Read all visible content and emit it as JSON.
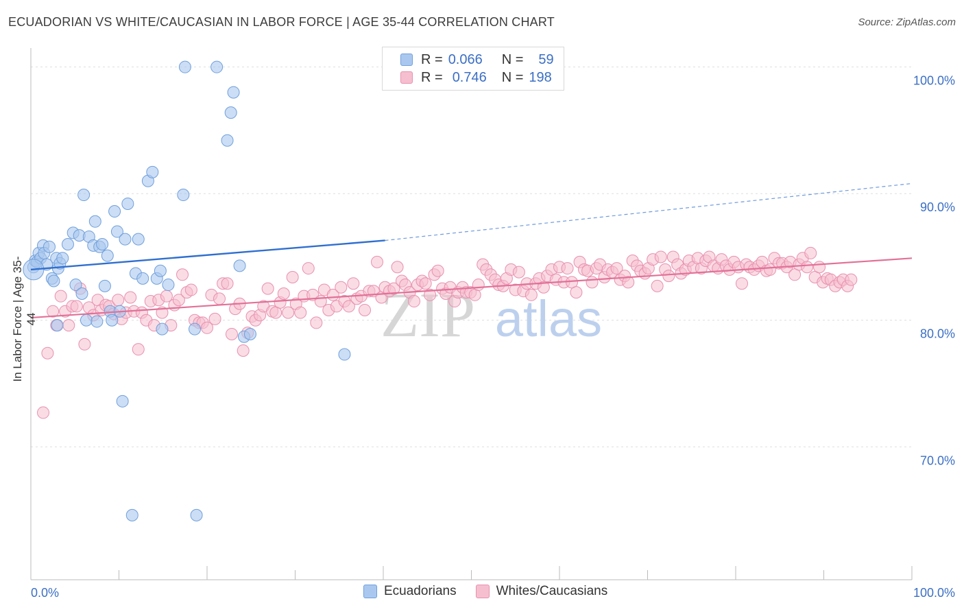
{
  "header": {
    "title": "ECUADORIAN VS WHITE/CAUCASIAN IN LABOR FORCE | AGE 35-44 CORRELATION CHART",
    "source": "Source: ZipAtlas.com"
  },
  "watermark": {
    "zip": "ZIP",
    "atlas": "atlas"
  },
  "legend_top": {
    "rows": [
      {
        "r_label": "R =",
        "r_value": "0.066",
        "n_label": "N =",
        "n_value": "59"
      },
      {
        "r_label": "R =",
        "r_value": "0.746",
        "n_label": "N =",
        "n_value": "198"
      }
    ]
  },
  "legend_bottom": {
    "items": [
      "Ecuadorians",
      "Whites/Caucasians"
    ]
  },
  "colors": {
    "blue_fill": "#aac8ef",
    "blue_stroke": "#6f9fdc",
    "blue_line": "#2f6fcf",
    "pink_fill": "#f6bfd0",
    "pink_stroke": "#e890ae",
    "pink_line": "#e27097",
    "tick_label": "#3b6fc4",
    "grid": "#dddddd"
  },
  "chart_data": {
    "type": "scatter",
    "title": "ECUADORIAN VS WHITE/CAUCASIAN IN LABOR FORCE | AGE 35-44 CORRELATION CHART",
    "xlabel": "",
    "ylabel": "In Labor Force | Age 35-44",
    "xlim": [
      0,
      100
    ],
    "ylim": [
      59.5,
      101.5
    ],
    "x_tick_labels": [
      {
        "value": 0,
        "label": "0.0%"
      },
      {
        "value": 100,
        "label": "100.0%"
      }
    ],
    "y_tick_labels": [
      {
        "value": 100,
        "label": "100.0%"
      },
      {
        "value": 90,
        "label": "90.0%"
      },
      {
        "value": 80,
        "label": "80.0%"
      },
      {
        "value": 70,
        "label": "70.0%"
      }
    ],
    "grid": true,
    "legend_placement": "bottom",
    "series": [
      {
        "name": "Ecuadorians",
        "r": 0.066,
        "n": 59,
        "trend": {
          "x": [
            0,
            40.2
          ],
          "y": [
            84.0,
            86.3
          ]
        },
        "trend_extension": {
          "x": [
            40.2,
            100
          ],
          "y": [
            86.3,
            90.8
          ]
        },
        "points": [
          [
            0.3,
            84.2
          ],
          [
            0.5,
            84.7
          ],
          [
            0.7,
            84.6
          ],
          [
            0.9,
            85.3
          ],
          [
            1.1,
            84.9
          ],
          [
            1.4,
            85.9
          ],
          [
            1.5,
            85.3
          ],
          [
            1.8,
            84.4
          ],
          [
            2.1,
            85.8
          ],
          [
            2.4,
            83.3
          ],
          [
            2.6,
            83.1
          ],
          [
            2.9,
            84.9
          ],
          [
            3.1,
            84.1
          ],
          [
            3.3,
            84.5
          ],
          [
            3.6,
            84.9
          ],
          [
            4.2,
            86.0
          ],
          [
            4.8,
            86.9
          ],
          [
            5.1,
            82.8
          ],
          [
            5.5,
            86.7
          ],
          [
            5.8,
            82.1
          ],
          [
            6.0,
            89.9
          ],
          [
            6.3,
            80.0
          ],
          [
            6.6,
            86.6
          ],
          [
            7.1,
            85.9
          ],
          [
            7.3,
            87.8
          ],
          [
            7.5,
            79.9
          ],
          [
            7.8,
            85.8
          ],
          [
            8.1,
            86.0
          ],
          [
            8.4,
            82.7
          ],
          [
            8.7,
            85.1
          ],
          [
            9.0,
            80.7
          ],
          [
            9.2,
            80.0
          ],
          [
            9.5,
            88.6
          ],
          [
            9.8,
            87.0
          ],
          [
            10.1,
            80.7
          ],
          [
            10.4,
            73.6
          ],
          [
            10.7,
            86.4
          ],
          [
            11.0,
            89.2
          ],
          [
            11.9,
            83.7
          ],
          [
            12.2,
            86.4
          ],
          [
            12.7,
            83.3
          ],
          [
            13.3,
            91.0
          ],
          [
            13.8,
            91.7
          ],
          [
            14.3,
            83.3
          ],
          [
            14.7,
            83.9
          ],
          [
            14.9,
            79.3
          ],
          [
            15.6,
            82.8
          ],
          [
            17.3,
            89.9
          ],
          [
            17.5,
            100.0
          ],
          [
            18.6,
            79.3
          ],
          [
            21.1,
            100.0
          ],
          [
            22.3,
            94.2
          ],
          [
            22.7,
            96.4
          ],
          [
            23.0,
            98.0
          ],
          [
            23.7,
            84.3
          ],
          [
            24.2,
            78.7
          ],
          [
            24.9,
            78.9
          ],
          [
            35.6,
            77.3
          ],
          [
            11.5,
            64.6
          ],
          [
            18.8,
            64.6
          ],
          [
            3.0,
            79.6
          ]
        ]
      },
      {
        "name": "Whites/Caucasians",
        "r": 0.746,
        "n": 198,
        "trend": {
          "x": [
            0,
            100
          ],
          "y": [
            80.2,
            84.9
          ]
        },
        "points": [
          [
            1.4,
            72.7
          ],
          [
            1.9,
            77.4
          ],
          [
            2.5,
            80.7
          ],
          [
            2.9,
            79.6
          ],
          [
            3.4,
            81.9
          ],
          [
            3.9,
            80.7
          ],
          [
            4.3,
            79.6
          ],
          [
            4.7,
            81.1
          ],
          [
            5.2,
            81.1
          ],
          [
            5.6,
            82.5
          ],
          [
            6.1,
            78.1
          ],
          [
            6.6,
            81.0
          ],
          [
            7.1,
            80.4
          ],
          [
            7.6,
            81.6
          ],
          [
            8.0,
            80.8
          ],
          [
            8.5,
            81.2
          ],
          [
            8.9,
            81.1
          ],
          [
            9.4,
            80.5
          ],
          [
            9.9,
            81.6
          ],
          [
            10.3,
            80.1
          ],
          [
            10.8,
            80.6
          ],
          [
            11.3,
            81.8
          ],
          [
            11.7,
            80.7
          ],
          [
            12.2,
            77.7
          ],
          [
            12.6,
            80.6
          ],
          [
            13.1,
            80.0
          ],
          [
            13.6,
            81.5
          ],
          [
            14.0,
            79.6
          ],
          [
            14.5,
            81.6
          ],
          [
            14.9,
            80.6
          ],
          [
            15.4,
            81.9
          ],
          [
            15.9,
            79.6
          ],
          [
            16.3,
            81.2
          ],
          [
            16.8,
            81.6
          ],
          [
            17.2,
            83.6
          ],
          [
            17.7,
            82.2
          ],
          [
            18.2,
            82.4
          ],
          [
            18.6,
            80.0
          ],
          [
            19.1,
            79.8
          ],
          [
            19.5,
            79.8
          ],
          [
            20.0,
            79.4
          ],
          [
            20.5,
            82.0
          ],
          [
            20.9,
            80.1
          ],
          [
            21.4,
            81.7
          ],
          [
            21.8,
            82.9
          ],
          [
            22.3,
            82.9
          ],
          [
            22.8,
            78.9
          ],
          [
            23.2,
            80.9
          ],
          [
            23.7,
            81.3
          ],
          [
            24.1,
            77.6
          ],
          [
            24.6,
            79.0
          ],
          [
            25.1,
            80.3
          ],
          [
            25.5,
            80.0
          ],
          [
            26.0,
            80.4
          ],
          [
            26.4,
            81.1
          ],
          [
            26.9,
            82.5
          ],
          [
            27.4,
            80.7
          ],
          [
            27.8,
            80.6
          ],
          [
            28.3,
            81.4
          ],
          [
            28.7,
            82.1
          ],
          [
            29.2,
            80.6
          ],
          [
            29.7,
            83.4
          ],
          [
            30.1,
            81.3
          ],
          [
            30.6,
            80.6
          ],
          [
            31.0,
            81.9
          ],
          [
            31.5,
            84.1
          ],
          [
            32.0,
            82.0
          ],
          [
            32.4,
            79.8
          ],
          [
            32.9,
            81.5
          ],
          [
            33.3,
            82.4
          ],
          [
            33.8,
            80.8
          ],
          [
            34.3,
            82.0
          ],
          [
            34.7,
            81.1
          ],
          [
            35.2,
            82.6
          ],
          [
            35.6,
            81.5
          ],
          [
            36.1,
            81.1
          ],
          [
            36.6,
            82.9
          ],
          [
            37.0,
            81.7
          ],
          [
            37.5,
            81.9
          ],
          [
            37.9,
            80.8
          ],
          [
            38.4,
            82.3
          ],
          [
            38.9,
            82.3
          ],
          [
            39.3,
            84.6
          ],
          [
            39.8,
            81.8
          ],
          [
            40.2,
            82.6
          ],
          [
            40.7,
            82.3
          ],
          [
            41.2,
            82.5
          ],
          [
            41.6,
            84.2
          ],
          [
            42.1,
            83.1
          ],
          [
            42.5,
            82.8
          ],
          [
            43.0,
            82.2
          ],
          [
            43.5,
            81.5
          ],
          [
            43.9,
            82.8
          ],
          [
            44.4,
            83.1
          ],
          [
            44.8,
            82.9
          ],
          [
            45.3,
            82.0
          ],
          [
            45.8,
            83.6
          ],
          [
            46.2,
            83.9
          ],
          [
            46.7,
            82.5
          ],
          [
            47.1,
            82.1
          ],
          [
            47.6,
            82.6
          ],
          [
            48.1,
            81.5
          ],
          [
            48.5,
            82.2
          ],
          [
            49.0,
            82.6
          ],
          [
            49.4,
            82.2
          ],
          [
            49.9,
            82.2
          ],
          [
            50.4,
            82.0
          ],
          [
            50.8,
            82.8
          ],
          [
            51.3,
            84.4
          ],
          [
            51.7,
            84.0
          ],
          [
            52.2,
            83.6
          ],
          [
            52.7,
            83.2
          ],
          [
            53.1,
            82.8
          ],
          [
            53.6,
            82.7
          ],
          [
            54.0,
            83.3
          ],
          [
            54.5,
            84.0
          ],
          [
            55.0,
            82.4
          ],
          [
            55.4,
            83.8
          ],
          [
            55.9,
            82.3
          ],
          [
            56.3,
            82.9
          ],
          [
            56.8,
            82.0
          ],
          [
            57.3,
            82.9
          ],
          [
            57.7,
            83.3
          ],
          [
            58.2,
            82.6
          ],
          [
            58.6,
            83.5
          ],
          [
            59.1,
            84.0
          ],
          [
            59.6,
            83.2
          ],
          [
            60.0,
            84.2
          ],
          [
            60.5,
            83.0
          ],
          [
            60.9,
            84.1
          ],
          [
            61.4,
            83.0
          ],
          [
            61.9,
            82.2
          ],
          [
            62.3,
            84.6
          ],
          [
            62.8,
            84.0
          ],
          [
            63.2,
            83.9
          ],
          [
            63.7,
            83.0
          ],
          [
            64.2,
            84.1
          ],
          [
            64.6,
            84.4
          ],
          [
            65.1,
            83.4
          ],
          [
            65.5,
            84.0
          ],
          [
            66.0,
            83.8
          ],
          [
            66.5,
            84.1
          ],
          [
            66.9,
            83.2
          ],
          [
            67.4,
            83.5
          ],
          [
            67.8,
            83.0
          ],
          [
            68.3,
            84.7
          ],
          [
            68.8,
            84.3
          ],
          [
            69.2,
            83.9
          ],
          [
            69.7,
            83.7
          ],
          [
            70.1,
            84.1
          ],
          [
            70.6,
            84.8
          ],
          [
            71.1,
            82.7
          ],
          [
            71.5,
            85.0
          ],
          [
            72.0,
            84.0
          ],
          [
            72.4,
            83.5
          ],
          [
            72.9,
            85.0
          ],
          [
            73.4,
            84.4
          ],
          [
            73.8,
            83.7
          ],
          [
            74.3,
            84.0
          ],
          [
            74.7,
            84.7
          ],
          [
            75.2,
            84.2
          ],
          [
            75.7,
            84.9
          ],
          [
            76.1,
            84.1
          ],
          [
            76.6,
            84.7
          ],
          [
            77.0,
            85.0
          ],
          [
            77.5,
            84.3
          ],
          [
            78.0,
            84.1
          ],
          [
            78.4,
            84.8
          ],
          [
            78.9,
            84.3
          ],
          [
            79.3,
            84.0
          ],
          [
            79.8,
            84.6
          ],
          [
            80.3,
            84.2
          ],
          [
            80.7,
            82.9
          ],
          [
            81.2,
            84.4
          ],
          [
            81.6,
            84.2
          ],
          [
            82.1,
            84.0
          ],
          [
            82.6,
            84.3
          ],
          [
            83.0,
            84.6
          ],
          [
            83.5,
            83.9
          ],
          [
            83.9,
            84.0
          ],
          [
            84.4,
            84.9
          ],
          [
            84.9,
            84.5
          ],
          [
            85.3,
            84.5
          ],
          [
            85.8,
            84.2
          ],
          [
            86.2,
            84.6
          ],
          [
            86.7,
            83.6
          ],
          [
            87.2,
            84.4
          ],
          [
            87.6,
            84.9
          ],
          [
            88.1,
            84.2
          ],
          [
            88.5,
            85.3
          ],
          [
            89.0,
            83.4
          ],
          [
            89.5,
            84.2
          ],
          [
            89.9,
            83.0
          ],
          [
            90.4,
            83.3
          ],
          [
            90.8,
            83.2
          ],
          [
            91.3,
            82.7
          ],
          [
            91.8,
            83.0
          ],
          [
            92.2,
            83.2
          ],
          [
            92.7,
            82.7
          ],
          [
            93.1,
            83.2
          ]
        ]
      }
    ]
  }
}
